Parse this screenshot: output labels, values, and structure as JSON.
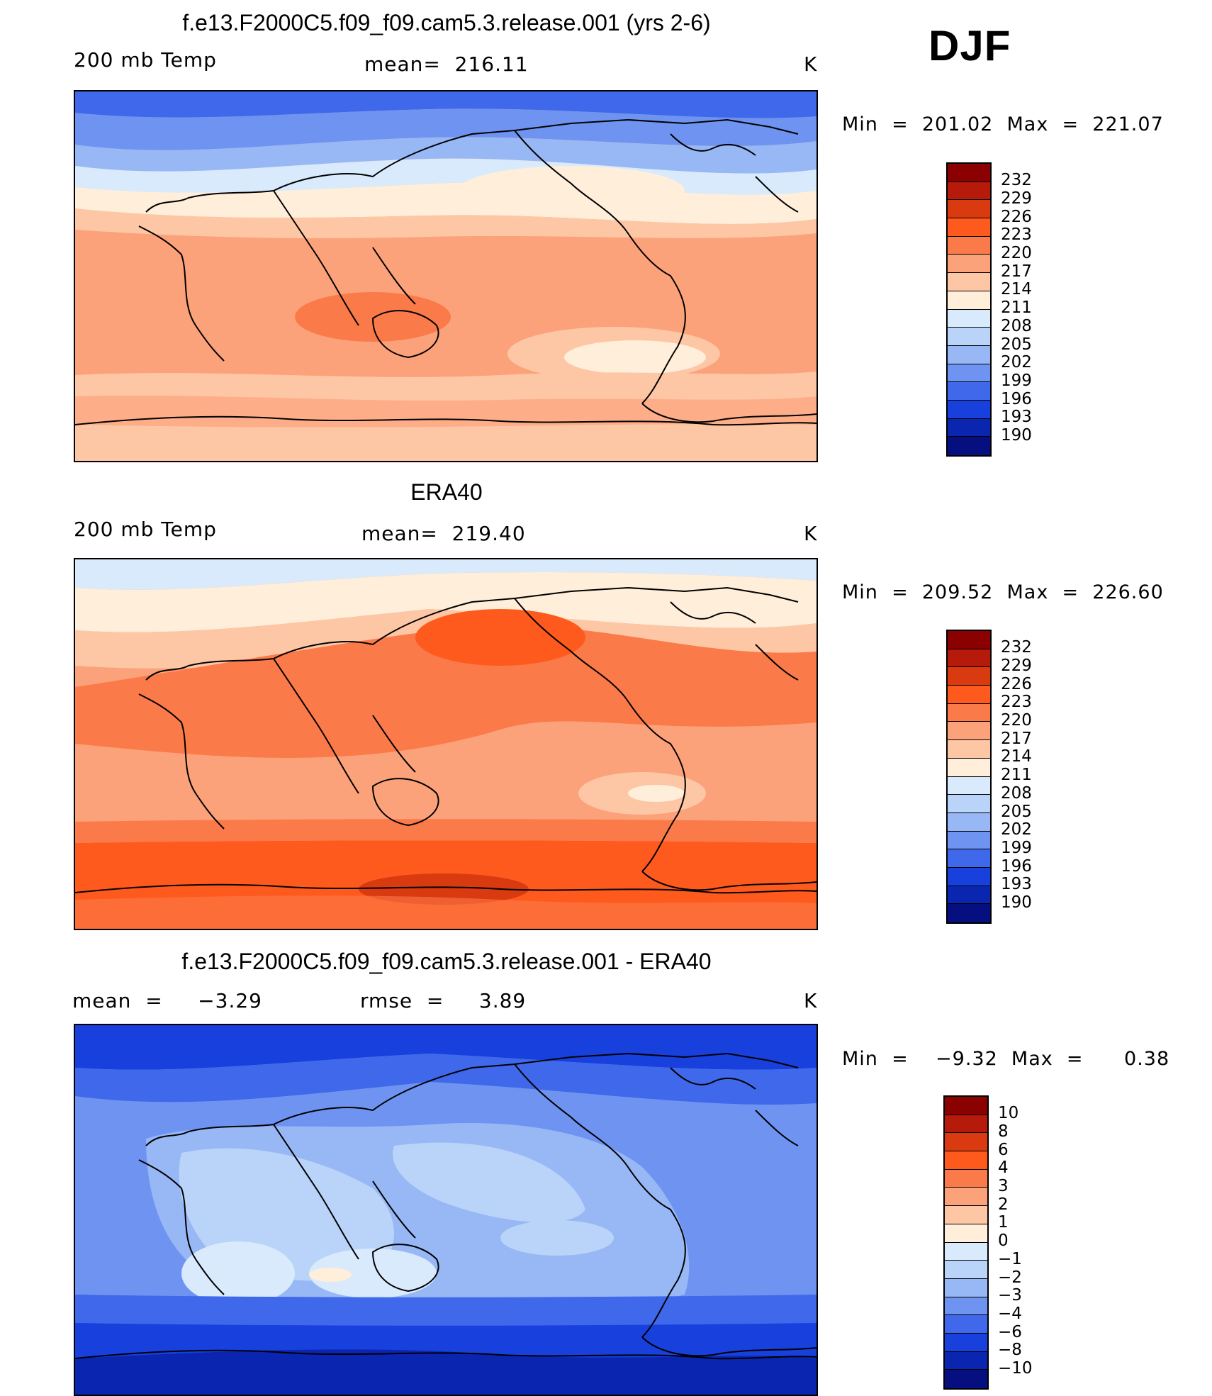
{
  "season": "DJF",
  "panels": [
    {
      "title": "f.e13.F2000C5.f09_f09.cam5.3.release.001 (yrs 2-6)",
      "left_label": "200 mb Temp",
      "center_label": "mean=  216.11",
      "units": "K",
      "minmax": "Min  =  201.02  Max  =  221.07"
    },
    {
      "title": "ERA40",
      "left_label": "200 mb Temp",
      "center_label": "mean=  219.40",
      "units": "K",
      "minmax": "Min  =  209.52  Max  =  226.60"
    },
    {
      "title": "f.e13.F2000C5.f09_f09.cam5.3.release.001 - ERA40",
      "left_label": "mean  =     −3.29",
      "center_label": "rmse  =     3.89",
      "units": "K",
      "minmax": "Min  =    −9.32  Max  =      0.38"
    }
  ],
  "chart_data": [
    {
      "type": "heatmap",
      "title": "f.e13.F2000C5.f09_f09.cam5.3.release.001 (yrs 2-6)",
      "variable": "200 mb Temp",
      "units": "K",
      "mean": 216.11,
      "min": 201.02,
      "max": 221.07,
      "levels": [
        232,
        229,
        226,
        223,
        220,
        217,
        214,
        211,
        208,
        205,
        202,
        199,
        196,
        193,
        190
      ],
      "colors": [
        "#8b0000",
        "#b51a0a",
        "#d93a0f",
        "#ff5a1e",
        "#fb7a4a",
        "#fca27a",
        "#fdc7a6",
        "#feeeda",
        "#d8eafc",
        "#bad3f8",
        "#98b7f5",
        "#6f93f0",
        "#3f68ea",
        "#1840dd",
        "#0a26b0"
      ],
      "bottom_color": "#050f80"
    },
    {
      "type": "heatmap",
      "title": "ERA40",
      "variable": "200 mb Temp",
      "units": "K",
      "mean": 219.4,
      "min": 209.52,
      "max": 226.6,
      "levels": [
        232,
        229,
        226,
        223,
        220,
        217,
        214,
        211,
        208,
        205,
        202,
        199,
        196,
        193,
        190
      ],
      "colors": [
        "#8b0000",
        "#b51a0a",
        "#d93a0f",
        "#ff5a1e",
        "#fb7a4a",
        "#fca27a",
        "#fdc7a6",
        "#feeeda",
        "#d8eafc",
        "#bad3f8",
        "#98b7f5",
        "#6f93f0",
        "#3f68ea",
        "#1840dd",
        "#0a26b0"
      ],
      "bottom_color": "#050f80"
    },
    {
      "type": "heatmap",
      "title": "f.e13.F2000C5.f09_f09.cam5.3.release.001 - ERA40",
      "units": "K",
      "mean": -3.29,
      "rmse": 3.89,
      "min": -9.32,
      "max": 0.38,
      "levels": [
        "10",
        "8",
        "6",
        "4",
        "3",
        "2",
        "1",
        "0",
        "−1",
        "−2",
        "−3",
        "−4",
        "−6",
        "−8",
        "−10"
      ],
      "colors": [
        "#8b0000",
        "#b51a0a",
        "#d93a0f",
        "#ff5a1e",
        "#fb7a4a",
        "#fca27a",
        "#fdc7a6",
        "#feeeda",
        "#d8eafc",
        "#bad3f8",
        "#98b7f5",
        "#6f93f0",
        "#3f68ea",
        "#1840dd",
        "#0a26b0"
      ],
      "bottom_color": "#050f80"
    }
  ]
}
